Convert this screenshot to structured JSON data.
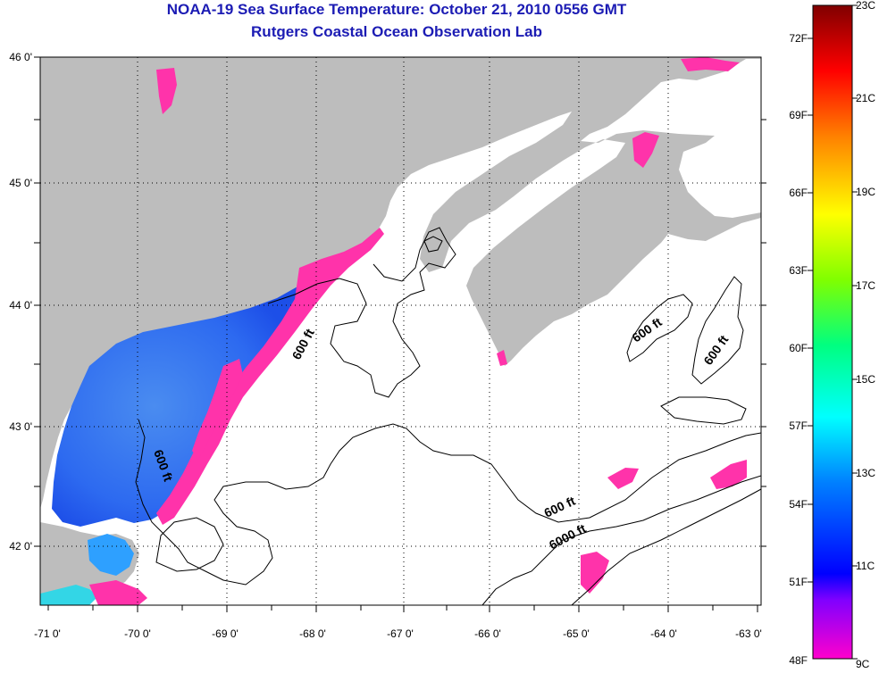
{
  "title": "NOAA-19 Sea Surface Temperature:  October 21, 2010 0556 GMT",
  "subtitle": "Rutgers Coastal Ocean Observation Lab",
  "map": {
    "lon_labels": [
      "-71 0'",
      "-70 0'",
      "-69 0'",
      "-68 0'",
      "-67 0'",
      "-66 0'",
      "-65 0'",
      "-64 0'",
      "-63 0'"
    ],
    "lat_labels": [
      "46 0'",
      "45 0'",
      "44 0'",
      "43 0'",
      "42 0'"
    ],
    "contour_labels": [
      "600 ft",
      "600 ft",
      "600 ft",
      "600 ft",
      "600 ft",
      "6000 ft"
    ],
    "colors": {
      "land": "#bdbdbd",
      "water_cloud": "#ffffff",
      "frame": "#000000"
    }
  },
  "colorbar": {
    "fahrenheit_labels": [
      "72F",
      "69F",
      "66F",
      "63F",
      "60F",
      "57F",
      "54F",
      "51F",
      "48F"
    ],
    "celsius_labels": [
      "23C",
      "21C",
      "19C",
      "17C",
      "15C",
      "13C",
      "11C",
      "9C"
    ],
    "gradient_colors": [
      "#ff00cc",
      "#8000ff",
      "#0000ff",
      "#0080ff",
      "#00ffff",
      "#00ff80",
      "#80ff00",
      "#ffff00",
      "#ff8000",
      "#ff0000",
      "#800000"
    ]
  }
}
